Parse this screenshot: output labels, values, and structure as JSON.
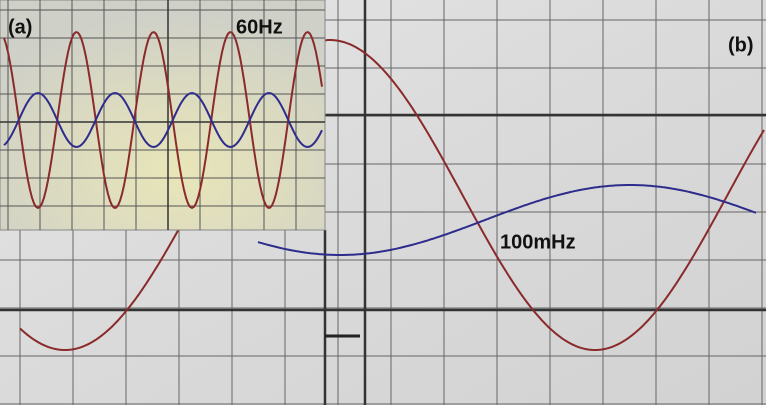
{
  "panel_a": {
    "label": "(a)",
    "frequency": "60Hz"
  },
  "panel_b": {
    "label": "(b)",
    "frequency": "100mHz"
  }
}
